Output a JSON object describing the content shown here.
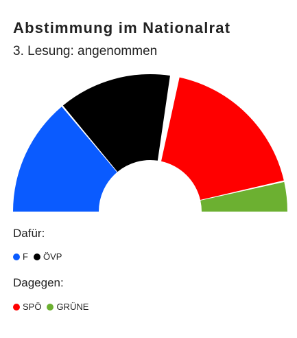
{
  "chart_data": {
    "type": "pie",
    "variant": "parliament-semicircle",
    "title": "Abstimmung im Nationalrat",
    "subtitle": "3. Lesung: angenommen",
    "segments": [
      {
        "name": "F",
        "value": 51,
        "color": "#0a5bff",
        "group": "for"
      },
      {
        "name": "ÖVP",
        "value": 51,
        "color": "#000000",
        "group": "for"
      },
      {
        "name": "SPÖ",
        "value": 68,
        "color": "#ff0000",
        "group": "against"
      },
      {
        "name": "GRÜNE",
        "value": 13,
        "color": "#6cb031",
        "group": "against"
      }
    ],
    "groups": {
      "for": {
        "label": "Dafür:"
      },
      "against": {
        "label": "Dagegen:"
      }
    }
  }
}
